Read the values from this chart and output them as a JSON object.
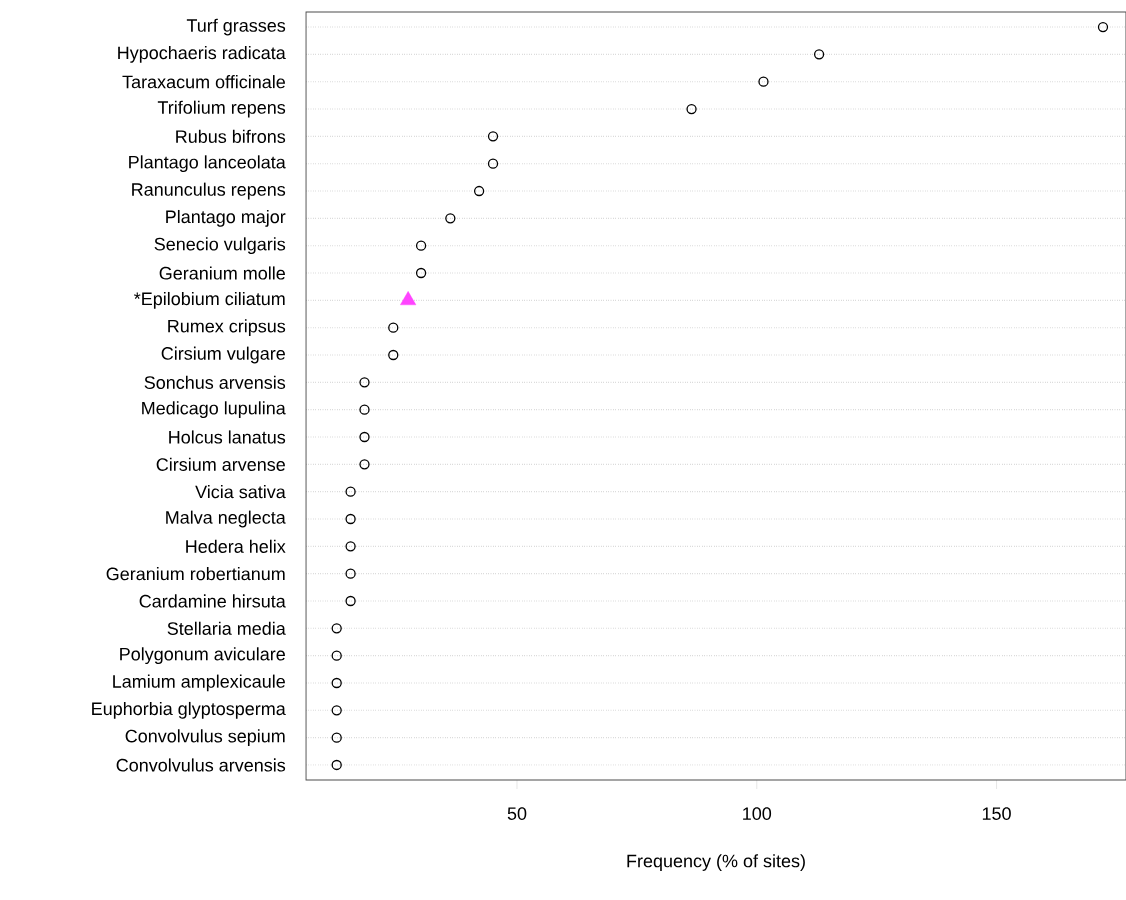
{
  "chart_data": {
    "type": "scatter",
    "orientation": "horizontal",
    "xlabel": "Frequency (% of sites)",
    "categories": [
      "Turf grasses",
      "Hypochaeris radicata",
      "Taraxacum officinale",
      "Trifolium repens",
      "Rubus bifrons",
      "Plantago lanceolata",
      "Ranunculus repens",
      "Plantago major",
      "Senecio vulgaris",
      "Geranium molle",
      "*Epilobium ciliatum",
      "Rumex cripsus",
      "Cirsium vulgare",
      "Sonchus arvensis",
      "Medicago lupulina",
      "Holcus lanatus",
      "Cirsium arvense",
      "Vicia sativa",
      "Malva neglecta",
      "Hedera helix",
      "Geranium robertianum",
      "Cardamine hirsuta",
      "Stellaria media",
      "Polygonum aviculare",
      "Lamium amplexicaule",
      "Euphorbia glyptosperma",
      "Convolvulus sepium",
      "Convolvulus arvensis"
    ],
    "series": [
      {
        "color": "#000000",
        "marker": "circle",
        "values": [
          172.2,
          113.0,
          101.4,
          86.4,
          45.0,
          45.0,
          42.1,
          36.1,
          30.0,
          30.0,
          null,
          24.2,
          24.2,
          18.2,
          18.2,
          18.2,
          18.2,
          15.3,
          15.3,
          15.3,
          15.3,
          15.3,
          12.4,
          12.4,
          12.4,
          12.4,
          12.4,
          12.4
        ]
      },
      {
        "color": "#ff44ff",
        "marker": "triangle",
        "values": [
          null,
          null,
          null,
          null,
          null,
          null,
          null,
          null,
          null,
          null,
          27.3,
          null,
          null,
          null,
          null,
          null,
          null,
          null,
          null,
          null,
          null,
          null,
          null,
          null,
          null,
          null,
          null,
          null
        ]
      }
    ],
    "xlim": [
      6,
      177
    ],
    "xticks": [
      50,
      100,
      150
    ],
    "grid": "y"
  }
}
